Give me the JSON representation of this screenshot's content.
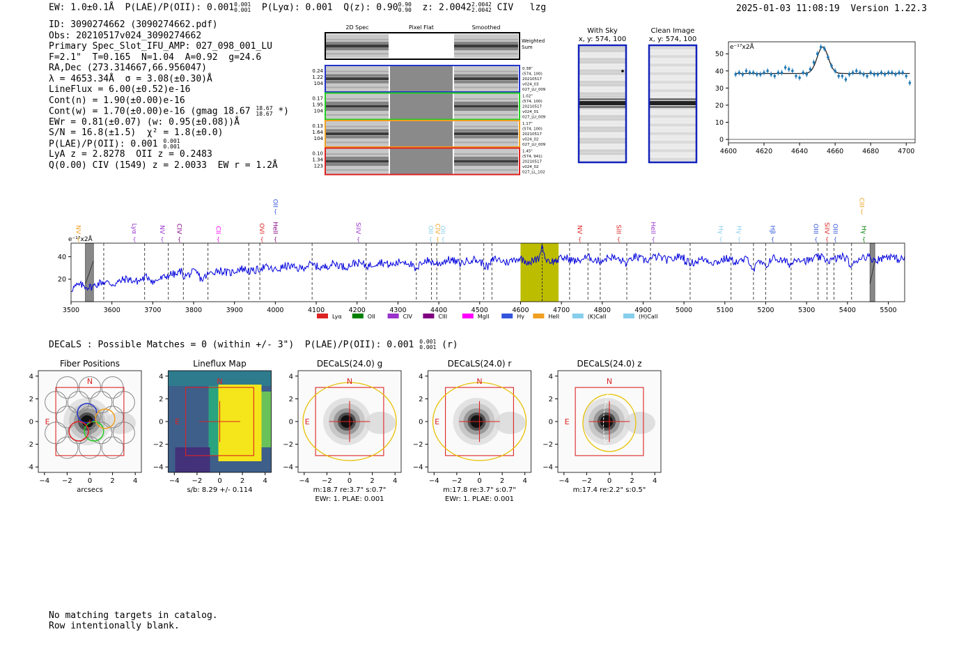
{
  "header": {
    "ew": "EW: 1.0±0.1Å",
    "plae_label": "P(LAE)/P(OII): 0.001",
    "plae_hi": "0.001",
    "plae_lo": "0.001",
    "plya": "P(Lyα): 0.001",
    "qz_label": "Q(z): 0.90",
    "qz_hi": "0.90",
    "qz_lo": "0.90",
    "z_label": "z: 2.0042",
    "z_hi": "2.0042",
    "z_lo": "2.0042",
    "line": "CIV",
    "tag": "lzg",
    "datetime": "2025-01-03 11:08:19",
    "version": "Version 1.22.3"
  },
  "info": {
    "id": "ID: 3090274662 (3090274662.pdf)",
    "obs": "Obs: 20210517v024_3090274662",
    "primary": "Primary Spec_Slot_IFU_AMP: 027_098_001_LU",
    "fiber": "F=2.1\"  T=0.165  N=1.04  A=0.92  g=24.6",
    "radec": "RA,Dec (273.314667,66.956047)",
    "lambda": "λ = 4653.34Å  σ = 3.08(±0.30)Å",
    "lineflux": "LineFlux = 6.00(±0.52)e-16",
    "contn": "Cont(n) = 1.90(±0.00)e-16",
    "contw": "Cont(w) = 1.70(±0.00)e-16 (gmag 18.67",
    "contw_hi": "18.67",
    "contw_lo": "18.67",
    "contw_tail": "*)",
    "ewr": "EWr = 0.81(±0.07) (w: 0.95(±0.08))Å",
    "sn": "S/N = 16.8(±1.5)  χ² = 1.8(±0.0)",
    "plae": "P(LAE)/P(OII): 0.001",
    "plae_hi": "0.001",
    "plae_lo": "0.001",
    "lya": "LyA z = 2.8278  OII z = 0.2483",
    "q": "Q(0.00) CIV (1549) z = 2.0033  EW r = 1.2Å"
  },
  "cutouts": {
    "col_headers": [
      "2D Spec",
      "Pixel Flat",
      "Smoothed"
    ],
    "weighted_label": "Weighted Sum",
    "rows": [
      {
        "left": [
          "0.24",
          "1.22",
          "104"
        ],
        "right": [
          "0.38\"",
          "(574, 100)",
          "20210517",
          "v024_03",
          "027_LU_009"
        ],
        "color": "#2233cc"
      },
      {
        "left": [
          "0.17",
          "1.95",
          "104"
        ],
        "right": [
          "1.02\"",
          "(574, 100)",
          "20210517",
          "v024_01",
          "027_LU_009"
        ],
        "color": "#22cc22"
      },
      {
        "left": [
          "0.13",
          "1.64",
          "104"
        ],
        "right": [
          "1.17\"",
          "(574, 100)",
          "20210517",
          "v024_02",
          "027_LU_009"
        ],
        "color": "#f0a020"
      },
      {
        "left": [
          "0.10",
          "1.34",
          "123"
        ],
        "right": [
          "1.45\"",
          "(574, 941)",
          "20210517",
          "v024_02",
          "027_LL_102"
        ],
        "color": "#dd2222"
      }
    ]
  },
  "sky": {
    "with_sky_title": "With Sky",
    "with_sky_sub": "x, y: 574, 100",
    "clean_title": "Clean Image",
    "clean_sub": "x, y: 574, 100"
  },
  "zoom_chart": {
    "ylabel": "e⁻¹⁷x2Å",
    "x": [
      4604,
      4606,
      4608,
      4610,
      4612,
      4614,
      4616,
      4618,
      4620,
      4622,
      4624,
      4626,
      4628,
      4630,
      4632,
      4634,
      4636,
      4638,
      4640,
      4642,
      4644,
      4646,
      4648,
      4650,
      4652,
      4654,
      4656,
      4658,
      4660,
      4662,
      4664,
      4666,
      4668,
      4670,
      4672,
      4674,
      4676,
      4678,
      4680,
      4682,
      4684,
      4686,
      4688,
      4690,
      4692,
      4694,
      4696,
      4698,
      4700,
      4702
    ],
    "y": [
      38,
      39,
      38,
      40,
      39,
      39,
      38,
      38,
      39,
      40,
      38,
      37,
      39,
      39,
      42,
      41,
      40,
      37,
      36,
      39,
      38,
      41,
      45,
      50,
      54,
      53,
      48,
      43,
      40,
      37,
      37,
      35,
      38,
      39,
      40,
      39,
      38,
      37,
      39,
      38,
      38,
      39,
      38,
      39,
      39,
      38,
      39,
      39,
      37,
      33
    ],
    "fit_center": 4653,
    "fit_sigma": 3.1,
    "fit_base": 38.5,
    "fit_amp": 15.5,
    "xlim": [
      4600,
      4705
    ],
    "ylim": [
      -2,
      57
    ],
    "xticks": [
      4600,
      4620,
      4640,
      4660,
      4680,
      4700
    ],
    "yticks": [
      0,
      10,
      20,
      30,
      40,
      50
    ]
  },
  "spectrum": {
    "ylabel": "e⁻¹⁷x2Å",
    "xlim": [
      3500,
      5540
    ],
    "ylim": [
      0,
      52
    ],
    "xticks": [
      3500,
      3600,
      3700,
      3800,
      3900,
      4000,
      4100,
      4200,
      4300,
      4400,
      4500,
      4600,
      4700,
      4800,
      4900,
      5000,
      5100,
      5200,
      5300,
      5400,
      5500
    ],
    "yticks": [
      20,
      40
    ],
    "highlight": [
      4600,
      4693
    ],
    "marker_x": 4653,
    "masked": [
      [
        3535,
        3555
      ],
      [
        5455,
        5467
      ]
    ],
    "dashed_lines": [
      3580,
      3680,
      3738,
      3775,
      3835,
      3935,
      3962,
      4090,
      4222,
      4345,
      4382,
      4395,
      4452,
      4510,
      4530,
      4720,
      4765,
      4795,
      4860,
      4918,
      5015,
      5115,
      5170,
      5200,
      5262,
      5328,
      5350,
      5367,
      5410
    ],
    "line_labels": [
      {
        "text": "NV",
        "x": 3513,
        "color": "#f0a020",
        "tier": 1
      },
      {
        "text": "Lyα",
        "x": 3650,
        "color": "#9933cc",
        "tier": 1
      },
      {
        "text": "NV",
        "x": 3718,
        "color": "#9933cc",
        "tier": 1
      },
      {
        "text": "CIV",
        "x": 3760,
        "color": "#800080",
        "tier": 1
      },
      {
        "text": "CII",
        "x": 3855,
        "color": "#ff00ff",
        "tier": 1
      },
      {
        "text": "OVI",
        "x": 3962,
        "color": "#dd2222",
        "tier": 1
      },
      {
        "text": "HeII",
        "x": 3995,
        "color": "#800080",
        "tier": 1
      },
      {
        "text": "OII",
        "x": 3995,
        "color": "#3355dd",
        "tier": 2
      },
      {
        "text": "SiIV",
        "x": 4198,
        "color": "#9933cc",
        "tier": 1
      },
      {
        "text": "OII",
        "x": 4375,
        "color": "#87ceeb",
        "tier": 1
      },
      {
        "text": "CIV",
        "x": 4392,
        "color": "#f0a020",
        "tier": 1
      },
      {
        "text": "OII",
        "x": 4405,
        "color": "#87ceeb",
        "tier": 1
      },
      {
        "text": "NV",
        "x": 4740,
        "color": "#dd2222",
        "tier": 1
      },
      {
        "text": "SiII",
        "x": 4835,
        "color": "#dd2222",
        "tier": 1
      },
      {
        "text": "HeII",
        "x": 4920,
        "color": "#9933cc",
        "tier": 1
      },
      {
        "text": "Hγ",
        "x": 5085,
        "color": "#87ceeb",
        "tier": 1
      },
      {
        "text": "Hγ",
        "x": 5130,
        "color": "#87ceeb",
        "tier": 1
      },
      {
        "text": "Hβ",
        "x": 5212,
        "color": "#3355dd",
        "tier": 1
      },
      {
        "text": "OIII",
        "x": 5318,
        "color": "#3355dd",
        "tier": 1
      },
      {
        "text": "SiIV",
        "x": 5345,
        "color": "#dd2222",
        "tier": 1
      },
      {
        "text": "OIII",
        "x": 5365,
        "color": "#3355dd",
        "tier": 1
      },
      {
        "text": "Hγ",
        "x": 5435,
        "color": "#008000",
        "tier": 1
      },
      {
        "text": "CIII",
        "x": 5430,
        "color": "#f0a020",
        "tier": 2
      }
    ],
    "legend": [
      {
        "label": "Lyα",
        "color": "#dd2222"
      },
      {
        "label": "OII",
        "color": "#008000"
      },
      {
        "label": "CIV",
        "color": "#9933cc"
      },
      {
        "label": "CIII",
        "color": "#800080"
      },
      {
        "label": "MgII",
        "color": "#ff00ff"
      },
      {
        "label": "Hγ",
        "color": "#3355dd"
      },
      {
        "label": "HeII",
        "color": "#f0a020"
      },
      {
        "label": "(K)CaII",
        "color": "#87ceeb"
      },
      {
        "label": "(H)CaII",
        "color": "#87ceeb"
      }
    ]
  },
  "decals": {
    "header": "DECaLS : Possible Matches = 0 (within +/- 3\")  P(LAE)/P(OII): 0.001",
    "header_hi": "0.001",
    "header_lo": "0.001",
    "header_tail": "(r)",
    "panels": [
      {
        "title": "Fiber Positions",
        "cap1": "arcsecs",
        "cap2": "",
        "kind": "fiber"
      },
      {
        "title": "Lineflux Map",
        "cap1": "s/b: 8.29 +/- 0.114",
        "cap2": "",
        "kind": "flux"
      },
      {
        "title": "DECaLS(24.0) g",
        "cap1": "m:18.7  re:3.7\"  s:0.7\"",
        "cap2": "EWr: 1. PLAE: 0.001",
        "kind": "img"
      },
      {
        "title": "DECaLS(24.0) r",
        "cap1": "m:17.8  re:3.7\"  s:0.7\"",
        "cap2": "EWr: 1. PLAE: 0.001",
        "kind": "img"
      },
      {
        "title": "DECaLS(24.0) z",
        "cap1": "m:17.4  re:2.2\"  s:0.5\"",
        "cap2": "",
        "kind": "imgz"
      }
    ],
    "ticks": [
      "−4",
      "−2",
      "0",
      "2",
      "4"
    ],
    "north": "N",
    "east": "E"
  },
  "footer": {
    "line1": "No matching targets in catalog.",
    "line2": "Row intentionally blank."
  }
}
